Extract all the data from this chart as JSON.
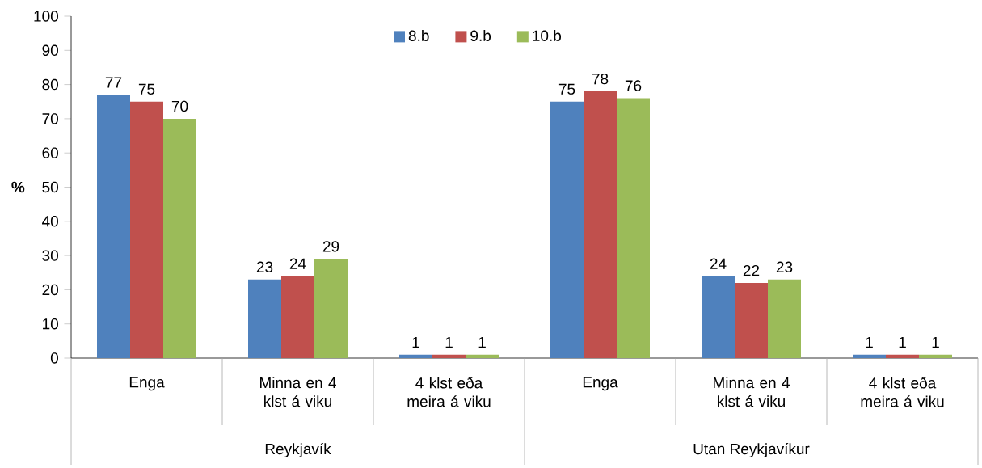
{
  "chart_data": {
    "type": "bar",
    "ylabel": "%",
    "categories": [
      "Enga",
      "Minna en 4 klst á viku",
      "4 klst eða meira á viku",
      "Enga",
      "Minna en 4 klst á viku",
      "4 klst eða meira á viku"
    ],
    "series": [
      {
        "name": "8.b",
        "color": "#4f81bd",
        "values": [
          77,
          23,
          1,
          75,
          24,
          1
        ]
      },
      {
        "name": "9.b",
        "color": "#c0504d",
        "values": [
          75,
          24,
          1,
          78,
          22,
          1
        ]
      },
      {
        "name": "10.b",
        "color": "#9bbb59",
        "values": [
          70,
          29,
          1,
          76,
          23,
          1
        ]
      }
    ],
    "annotations": [
      "Reykjavík",
      "Utan Reykjavíkur"
    ],
    "ylim": [
      0,
      100
    ],
    "yticks": [
      0,
      10,
      20,
      30,
      40,
      50,
      60,
      70,
      80,
      90,
      100
    ],
    "data_labels": true,
    "legend": "top",
    "grid": false
  }
}
